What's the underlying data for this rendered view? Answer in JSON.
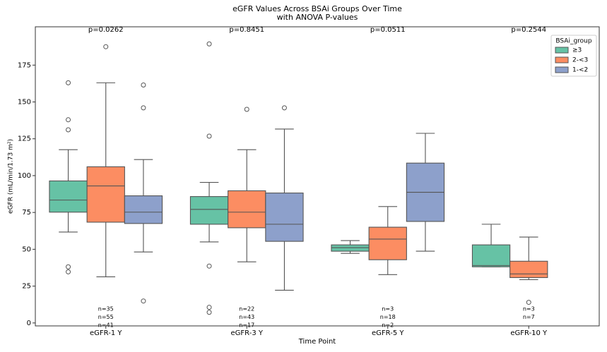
{
  "chart_data": {
    "type": "box",
    "title": "eGFR Values Across BSAi Groups Over Time",
    "subtitle": "with ANOVA P-values",
    "x_label": "Time Point",
    "y_label": "eGFR (mL/min/1.73 m²)",
    "categories": [
      "eGFR-1 Y",
      "eGFR-3 Y",
      "eGFR-5 Y",
      "eGFR-10 Y"
    ],
    "p_values": [
      "p=0.0262",
      "p=0.8451",
      "p=0.0511",
      "p=0.2544"
    ],
    "n_labels": [
      [
        "n=35",
        "n=55",
        "n=41"
      ],
      [
        "n=22",
        "n=43",
        "n=17"
      ],
      [
        "n=3",
        "n=18",
        "n=2"
      ],
      [
        "n=3",
        "n=7"
      ]
    ],
    "ylim": [
      -2,
      201
    ],
    "yticks": [
      0,
      25,
      50,
      75,
      100,
      125,
      150,
      175
    ],
    "grid": false,
    "legend_title": "BSAi_group",
    "legend": "upper right",
    "series": [
      {
        "name": "≥3",
        "color": "#66c2a5",
        "boxes": [
          {
            "whislo": 61.7,
            "q1": 75.2,
            "med": 83.4,
            "q3": 96.4,
            "whishi": 117.6,
            "fliers": [
              163,
              137.9,
              131.1,
              38.1,
              34.7
            ]
          },
          {
            "whislo": 55,
            "q1": 67,
            "med": 77.1,
            "q3": 85.8,
            "whishi": 95.4,
            "fliers": [
              189.4,
              126.8,
              38.6,
              10.6,
              7.2
            ]
          },
          {
            "whislo": 47.2,
            "q1": 48.7,
            "med": 51.1,
            "q3": 53,
            "whishi": 55.9,
            "fliers": []
          },
          {
            "whislo": 38.1,
            "q1": 38.1,
            "med": 39,
            "q3": 53,
            "whishi": 67,
            "fliers": []
          }
        ]
      },
      {
        "name": "2-<3",
        "color": "#fc8d62",
        "boxes": [
          {
            "whislo": 31.3,
            "q1": 68.4,
            "med": 93,
            "q3": 106,
            "whishi": 163,
            "fliers": [
              187.5
            ]
          },
          {
            "whislo": 41.5,
            "q1": 64.6,
            "med": 75.2,
            "q3": 89.7,
            "whishi": 117.6,
            "fliers": [
              145
            ]
          },
          {
            "whislo": 32.8,
            "q1": 42.9,
            "med": 56.9,
            "q3": 65,
            "whishi": 79,
            "fliers": []
          },
          {
            "whislo": 29.4,
            "q1": 30.8,
            "med": 33.3,
            "q3": 41.9,
            "whishi": 58.3,
            "fliers": [
              14
            ]
          }
        ]
      },
      {
        "name": "1-<2",
        "color": "#8da0cb",
        "boxes": [
          {
            "whislo": 48.2,
            "q1": 67.5,
            "med": 75.2,
            "q3": 86.3,
            "whishi": 110.9,
            "fliers": [
              161.5,
              146,
              14.9
            ]
          },
          {
            "whislo": 22.2,
            "q1": 55.4,
            "med": 67,
            "q3": 88.2,
            "whishi": 131.6,
            "fliers": [
              146
            ]
          },
          {
            "whislo": 48.7,
            "q1": 68.9,
            "med": 88.7,
            "q3": 108.5,
            "whishi": 128.7,
            "fliers": []
          },
          null
        ]
      }
    ]
  }
}
